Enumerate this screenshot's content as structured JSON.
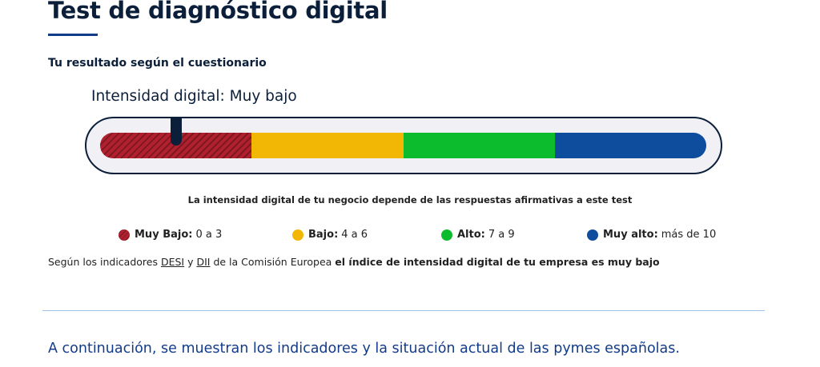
{
  "header": {
    "title": "Test de diagnóstico digital",
    "subtitle": "Tu resultado según el cuestionario"
  },
  "result": {
    "intensity_label": "Intensidad digital: Muy bajo",
    "marker_position_fraction": 0.125
  },
  "gauge": {
    "segments": [
      {
        "name": "Muy Bajo",
        "color": "#b0202e",
        "pattern": "striped"
      },
      {
        "name": "Bajo",
        "color": "#f2b705"
      },
      {
        "name": "Alto",
        "color": "#0cbc2c"
      },
      {
        "name": "Muy alto",
        "color": "#0e4c9e"
      }
    ]
  },
  "note": "La intensidad digital de tu negocio depende de las respuestas afirmativas a este test",
  "legend": [
    {
      "label": "Muy Bajo:",
      "range": "0 a 3",
      "color": "#b0202e"
    },
    {
      "label": "Bajo:",
      "range": "4 a 6",
      "color": "#f2b705"
    },
    {
      "label": "Alto:",
      "range": "7 a 9",
      "color": "#0cbc2c"
    },
    {
      "label": "Muy alto:",
      "range": "más de 10",
      "color": "#0e4c9e"
    }
  ],
  "indicators": {
    "prefix": "Según los indicadores ",
    "link1": "DESI",
    "connector": " y ",
    "link2": "DII",
    "middle": " de la Comisión Europea ",
    "bold": "el índice de intensidad digital de tu empresa es muy bajo"
  },
  "bottom": {
    "text": "A continuación, se muestran los indicadores y la situación actual de las pymes españolas."
  }
}
